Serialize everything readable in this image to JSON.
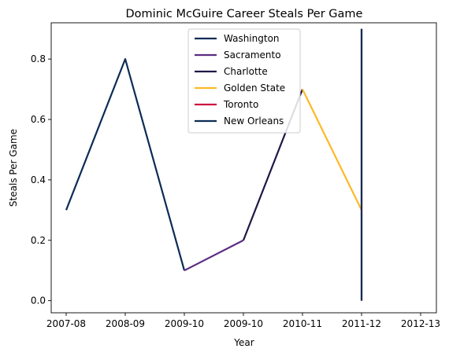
{
  "chart_data": {
    "type": "line",
    "title": "Dominic McGuire Career Steals Per Game",
    "xlabel": "Year",
    "ylabel": "Steals Per Game",
    "x_ticks": [
      "2007-08",
      "2008-09",
      "2009-10",
      "2009-10",
      "2010-11",
      "2011-12",
      "2012-13"
    ],
    "y_ticks": [
      "0.0",
      "0.2",
      "0.4",
      "0.6",
      "0.8"
    ],
    "ylim": [
      -0.04,
      0.92
    ],
    "legend_position": "upper center",
    "grid": false,
    "series": [
      {
        "name": "Washington",
        "color": "#0c2c56",
        "x": [
          0,
          1,
          2
        ],
        "y": [
          0.3,
          0.8,
          0.1
        ]
      },
      {
        "name": "Sacramento",
        "color": "#5a2d81",
        "x": [
          2,
          3
        ],
        "y": [
          0.1,
          0.2
        ]
      },
      {
        "name": "Charlotte",
        "color": "#201747",
        "x": [
          3,
          4
        ],
        "y": [
          0.2,
          0.7
        ]
      },
      {
        "name": "Golden State",
        "color": "#fdb927",
        "x": [
          4,
          5
        ],
        "y": [
          0.7,
          0.3
        ]
      },
      {
        "name": "Toronto",
        "color": "#ce1141",
        "x": [
          5,
          5
        ],
        "y": [
          0.0,
          0.9
        ]
      },
      {
        "name": "New Orleans",
        "color": "#0c2c56",
        "x": [
          5,
          5
        ],
        "y": [
          0.0,
          0.9
        ]
      }
    ]
  }
}
